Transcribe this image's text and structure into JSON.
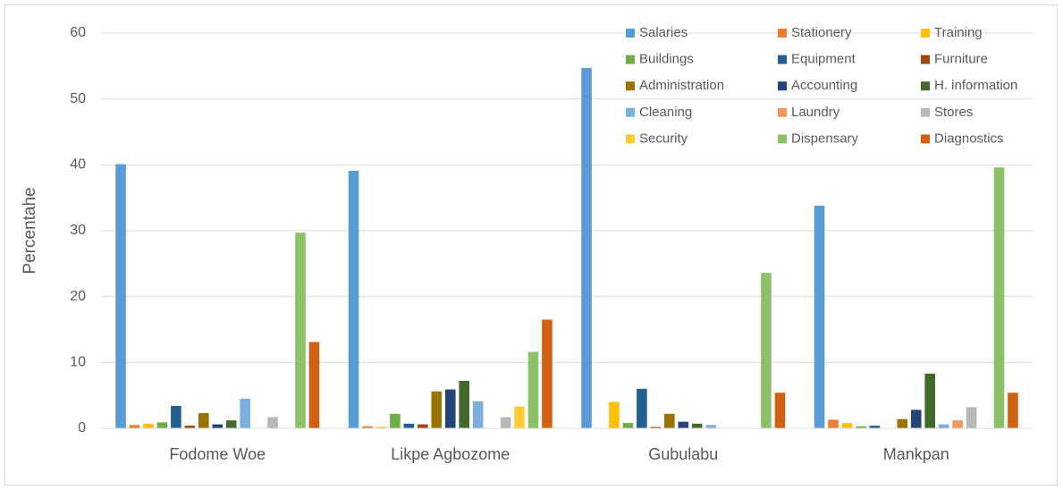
{
  "chart_data": {
    "type": "bar",
    "y_label": "Percentahe",
    "categories": [
      "Fodome Woe",
      "Likpe Agbozome",
      "Gubulabu",
      "Mankpan"
    ],
    "series": [
      {
        "name": "Salaries",
        "color": "#5B9BD5",
        "values": [
          40.1,
          39.1,
          54.7,
          33.8
        ]
      },
      {
        "name": "Stationery",
        "color": "#ED7D31",
        "values": [
          0.5,
          0.3,
          0,
          1.3
        ]
      },
      {
        "name": "Training",
        "color": "#FFC000",
        "values": [
          0.7,
          0.2,
          4.0,
          0.8
        ]
      },
      {
        "name": "Buildings",
        "color": "#70AD47",
        "values": [
          0.9,
          2.2,
          0.8,
          0.3
        ]
      },
      {
        "name": "Equipment",
        "color": "#255E91",
        "values": [
          3.4,
          0.7,
          6.0,
          0.4
        ]
      },
      {
        "name": "Furniture",
        "color": "#9E480E",
        "values": [
          0.4,
          0.6,
          0.2,
          0
        ]
      },
      {
        "name": "Administration",
        "color": "#997300",
        "values": [
          2.3,
          5.6,
          2.2,
          1.4
        ]
      },
      {
        "name": "Accounting",
        "color": "#264478",
        "values": [
          0.6,
          5.9,
          1.0,
          2.8
        ]
      },
      {
        "name": "H. information",
        "color": "#43682B",
        "values": [
          1.2,
          7.2,
          0.7,
          8.3
        ]
      },
      {
        "name": "Cleaning",
        "color": "#7CAFDD",
        "values": [
          4.5,
          4.1,
          0.5,
          0.6
        ]
      },
      {
        "name": "Laundry",
        "color": "#F1975A",
        "values": [
          0,
          0,
          0,
          1.2
        ]
      },
      {
        "name": "Stores",
        "color": "#B7B7B7",
        "values": [
          1.7,
          1.7,
          0,
          3.2
        ]
      },
      {
        "name": "Security",
        "color": "#FFCD33",
        "values": [
          0,
          3.3,
          0,
          0
        ]
      },
      {
        "name": "Dispensary",
        "color": "#8CC168",
        "values": [
          29.7,
          11.6,
          23.6,
          39.6
        ]
      },
      {
        "name": "Diagnostics",
        "color": "#D26012",
        "values": [
          13.1,
          16.5,
          5.4,
          5.4
        ]
      }
    ],
    "ylim": [
      0,
      60
    ],
    "yticks": [
      0,
      10,
      20,
      30,
      40,
      50,
      60
    ],
    "grid": true,
    "legend": "top-right"
  }
}
